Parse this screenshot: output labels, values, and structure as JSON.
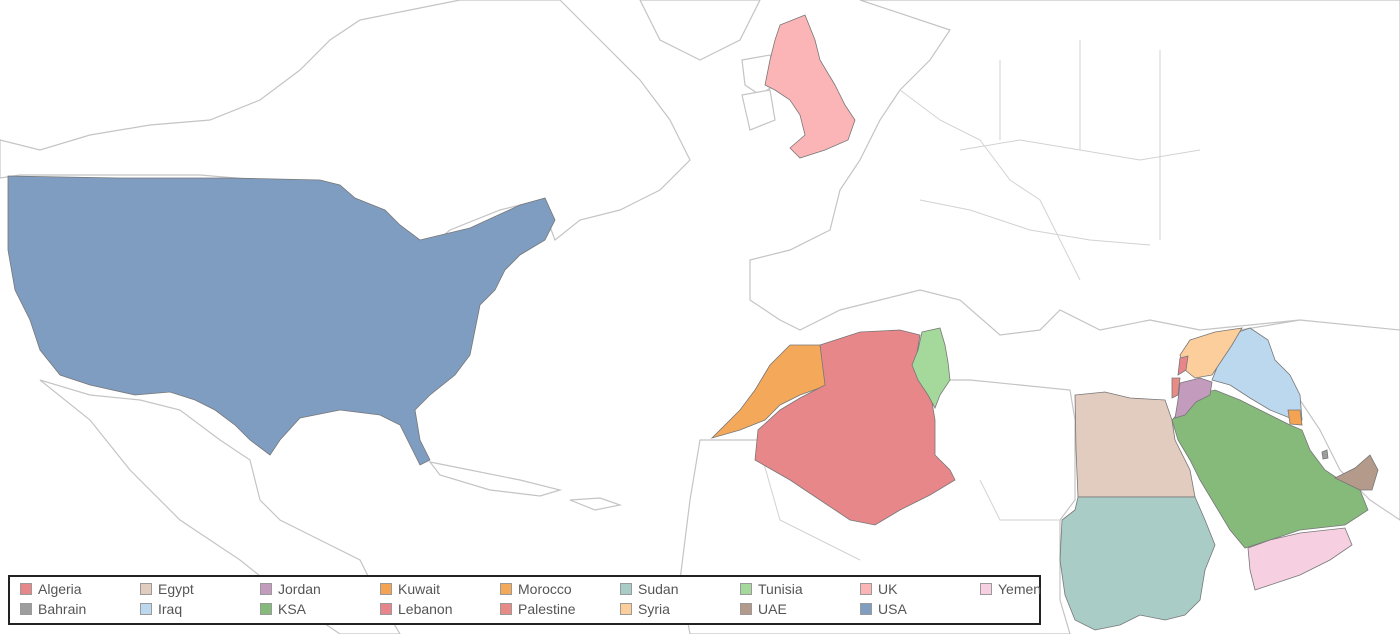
{
  "legend": {
    "items": [
      {
        "name": "Algeria",
        "color": "#e8878a"
      },
      {
        "name": "Egypt",
        "color": "#e2cbbf"
      },
      {
        "name": "Jordan",
        "color": "#c39bbd"
      },
      {
        "name": "Kuwait",
        "color": "#f4a352"
      },
      {
        "name": "Morocco",
        "color": "#f4a85a"
      },
      {
        "name": "Sudan",
        "color": "#a9ccc7"
      },
      {
        "name": "Tunisia",
        "color": "#a4d99b"
      },
      {
        "name": "UK",
        "color": "#fcb5b7"
      },
      {
        "name": "Yemen",
        "color": "#f6cfe0"
      },
      {
        "name": "Bahrain",
        "color": "#9d9d9d"
      },
      {
        "name": "Iraq",
        "color": "#bcd8ee"
      },
      {
        "name": "KSA",
        "color": "#86ba7b"
      },
      {
        "name": "Lebanon",
        "color": "#e8858a"
      },
      {
        "name": "Palestine",
        "color": "#e88a85"
      },
      {
        "name": "Syria",
        "color": "#fcce9b"
      },
      {
        "name": "UAE",
        "color": "#b49a8a"
      },
      {
        "name": "USA",
        "color": "#7f9dc1"
      }
    ]
  }
}
